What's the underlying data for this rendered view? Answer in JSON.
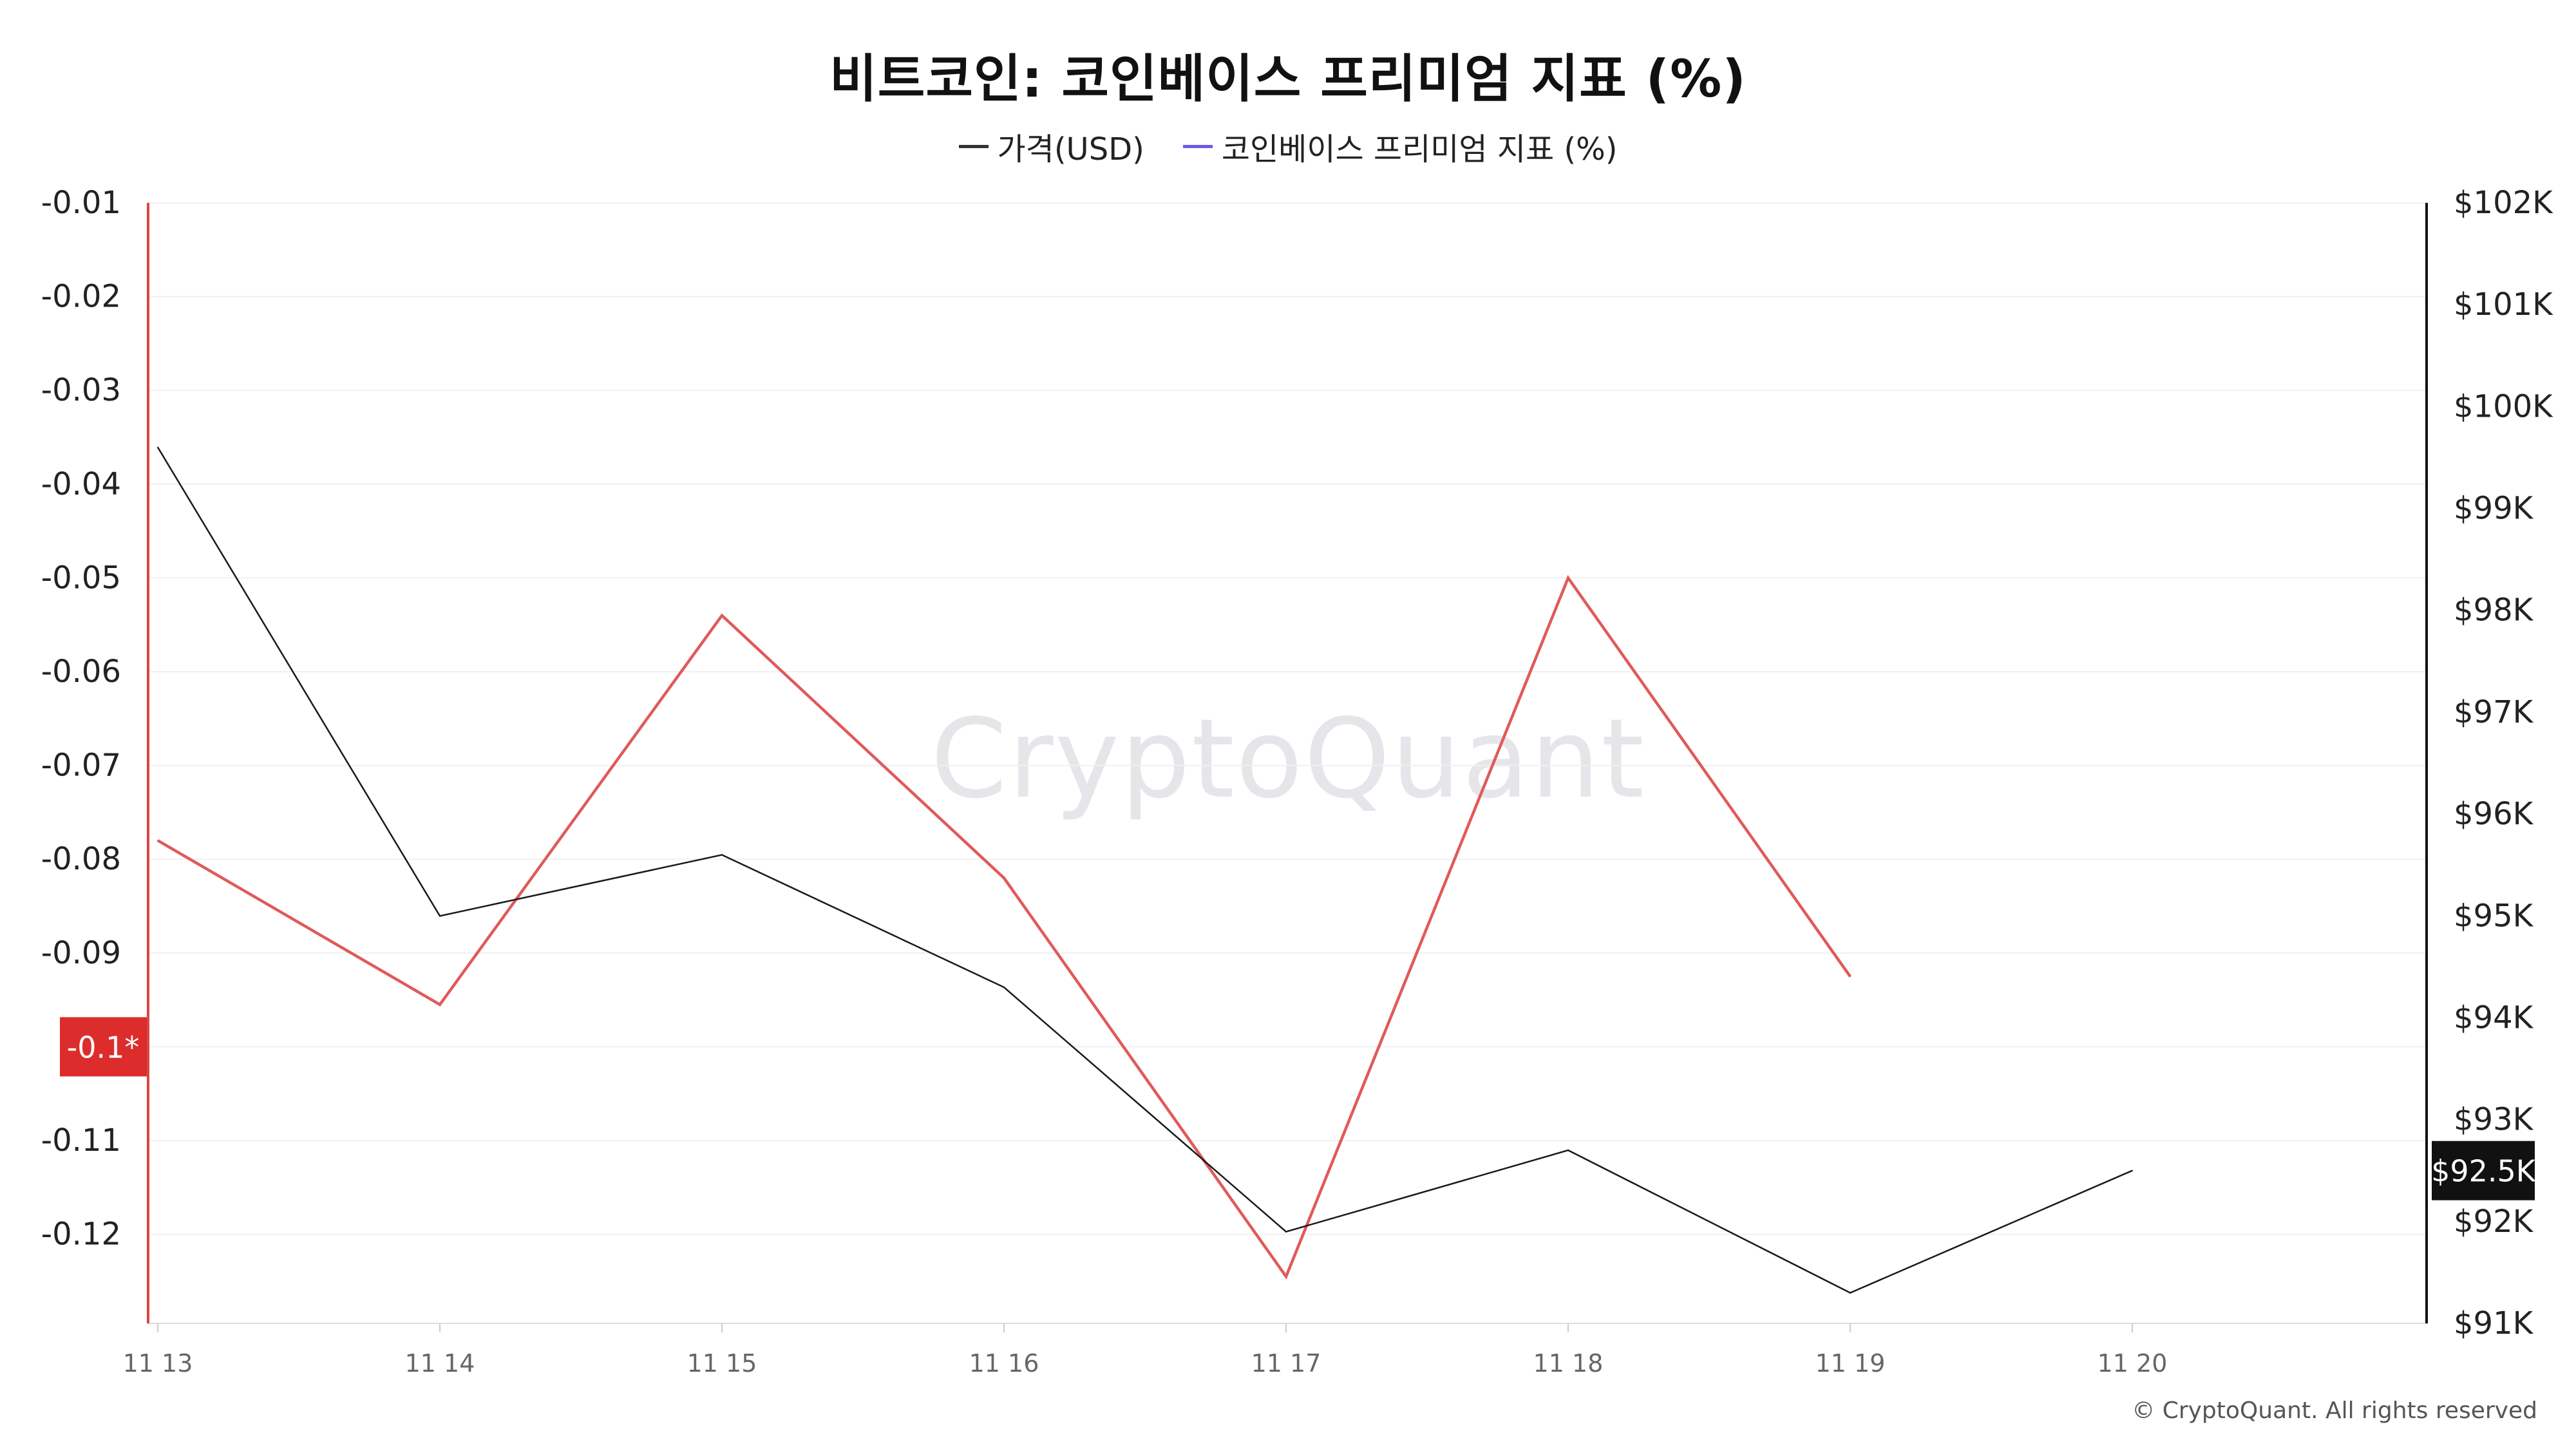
{
  "chart_data": {
    "type": "line",
    "title": "비트코인: 코인베이스 프리미엄 지표 (%)",
    "categories": [
      "11 13",
      "11 14",
      "11 15",
      "11 16",
      "11 17",
      "11 18",
      "11 19",
      "11 20"
    ],
    "series": [
      {
        "name": "가격(USD)",
        "axis": "right",
        "color": "#1a1a1a",
        "legend_color": "#333333",
        "values": [
          99600,
          95000,
          95600,
          94300,
          91900,
          92700,
          91300,
          92500
        ]
      },
      {
        "name": "코인베이스 프리미엄 지표 (%)",
        "axis": "left",
        "color": "#e05a5a",
        "legend_color": "#6b5ce7",
        "values": [
          -0.078,
          -0.0955,
          -0.054,
          -0.082,
          -0.1245,
          -0.05,
          -0.0925,
          null
        ]
      }
    ],
    "y_left": {
      "ylim": [
        -0.1295,
        -0.01
      ],
      "ticks": [
        "-0.01",
        "-0.02",
        "-0.03",
        "-0.04",
        "-0.05",
        "-0.06",
        "-0.07",
        "-0.08",
        "-0.09",
        "-0.11",
        "-0.12"
      ],
      "tick_values": [
        -0.01,
        -0.02,
        -0.03,
        -0.04,
        -0.05,
        -0.06,
        -0.07,
        -0.08,
        -0.09,
        -0.11,
        -0.12
      ]
    },
    "y_right": {
      "ylim": [
        91000,
        102000
      ],
      "ticks": [
        "$102K",
        "$101K",
        "$100K",
        "$99K",
        "$98K",
        "$97K",
        "$96K",
        "$95K",
        "$94K",
        "$93K",
        "$92K",
        "$91K"
      ],
      "tick_values": [
        102000,
        101000,
        100000,
        99000,
        98000,
        97000,
        96000,
        95000,
        94000,
        93000,
        92000,
        91000
      ]
    },
    "left_badge": {
      "label": "-0.1*",
      "value": -0.1,
      "color": "#dd2c2c"
    },
    "right_badge": {
      "label": "$92.5K",
      "value": 92500,
      "color": "#111111"
    },
    "grid": true
  },
  "watermark": "CryptoQuant",
  "copyright": "© CryptoQuant. All rights reserved"
}
